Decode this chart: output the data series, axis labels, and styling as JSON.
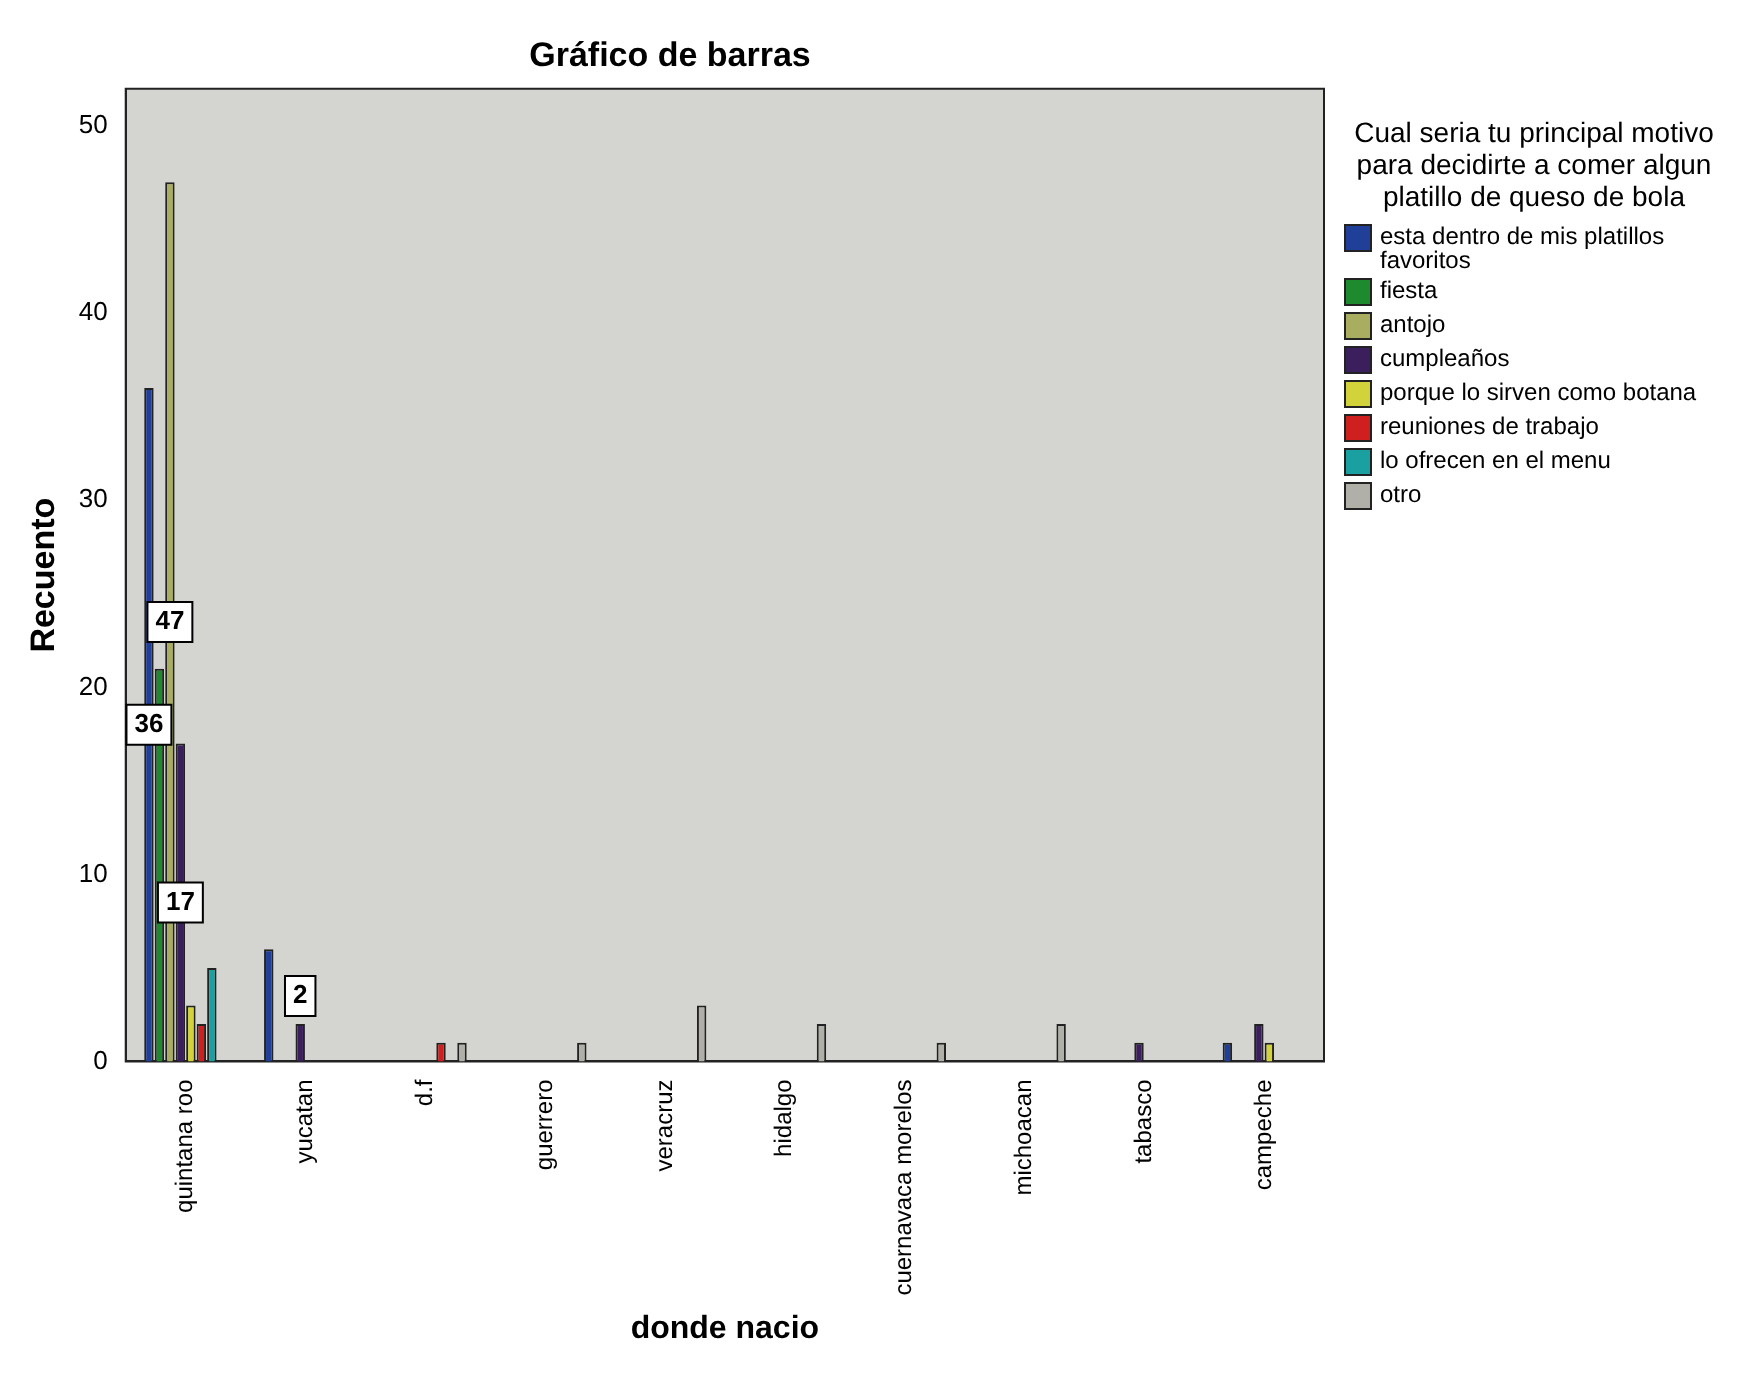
{
  "chart_data": {
    "type": "bar",
    "title": "Gráfico de barras",
    "xlabel": "donde nacio",
    "ylabel": "Recuento",
    "legend_title": "Cual seria tu principal motivo para decidirte a comer algun platillo de queso de bola",
    "categories": [
      "quintana roo",
      "yucatan",
      "d.f",
      "guerrero",
      "veracruz",
      "hidalgo",
      "cuernavaca morelos",
      "michoacan",
      "tabasco",
      "campeche"
    ],
    "series": [
      {
        "name": "esta dentro de mis platillos favoritos",
        "color": "#1f3f99",
        "values": [
          36,
          6,
          null,
          null,
          null,
          null,
          null,
          null,
          null,
          1
        ],
        "value_labels": [
          "36",
          null,
          null,
          null,
          null,
          null,
          null,
          null,
          null,
          null
        ]
      },
      {
        "name": "fiesta",
        "color": "#1e8a2e",
        "values": [
          21,
          null,
          null,
          null,
          null,
          null,
          null,
          null,
          null,
          null
        ]
      },
      {
        "name": "antojo",
        "color": "#a8ad60",
        "values": [
          47,
          null,
          null,
          null,
          null,
          null,
          null,
          null,
          null,
          null
        ],
        "value_labels": [
          "47",
          null,
          null,
          null,
          null,
          null,
          null,
          null,
          null,
          null
        ]
      },
      {
        "name": "cumpleaños",
        "color": "#3a1f5c",
        "values": [
          17,
          2,
          null,
          null,
          null,
          null,
          null,
          null,
          1,
          2
        ],
        "value_labels": [
          "17",
          "2",
          null,
          null,
          null,
          null,
          null,
          null,
          null,
          null
        ]
      },
      {
        "name": "porque lo sirven como botana",
        "color": "#d2d23a",
        "values": [
          3,
          null,
          null,
          null,
          null,
          null,
          null,
          null,
          null,
          1
        ]
      },
      {
        "name": "reuniones de trabajo",
        "color": "#d01f1f",
        "values": [
          2,
          null,
          1,
          null,
          null,
          null,
          null,
          null,
          null,
          null
        ]
      },
      {
        "name": "lo ofrecen en el menu",
        "color": "#1aa0a0",
        "values": [
          5,
          null,
          null,
          null,
          null,
          null,
          null,
          null,
          null,
          null
        ]
      },
      {
        "name": "otro",
        "color": "#b0b0a8",
        "values": [
          null,
          null,
          1,
          1,
          3,
          2,
          1,
          2,
          null,
          null
        ]
      }
    ],
    "ylim": [
      0,
      52
    ],
    "yticks": [
      0,
      10,
      20,
      30,
      40,
      50
    ],
    "grid": false,
    "legend": "right"
  }
}
